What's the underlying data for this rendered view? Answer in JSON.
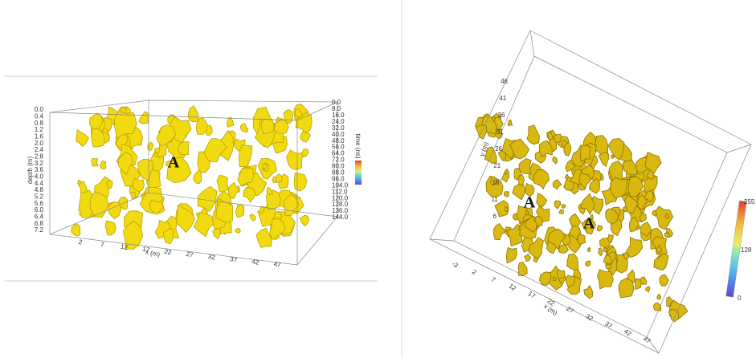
{
  "left_panel": {
    "depth_label": "depth (m)",
    "depth_ticks": [
      "0.0",
      "0.4",
      "0.8",
      "1.2",
      "1.6",
      "2.0",
      "2.4",
      "2.8",
      "3.2",
      "3.6",
      "4.0",
      "4.4",
      "4.8",
      "5.2",
      "5.6",
      "6.0",
      "6.4",
      "6.8",
      "7.2"
    ],
    "time_label": "time (ns)",
    "time_ticks": [
      "0.0",
      "8.0",
      "16.0",
      "24.0",
      "32.0",
      "40.0",
      "48.0",
      "56.0",
      "64.0",
      "72.0",
      "80.0",
      "88.0",
      "96.0",
      "104.0",
      "112.0",
      "120.0",
      "128.0",
      "136.0",
      "144.0"
    ],
    "x_label": "x (m)",
    "x_ticks": [
      "2",
      "7",
      "12",
      "17",
      "22",
      "27",
      "32",
      "37",
      "42",
      "47"
    ],
    "annotations": [
      "A"
    ]
  },
  "right_panel": {
    "y_label": "y (m)",
    "y_ticks": [
      "46",
      "41",
      "36",
      "31",
      "26",
      "21",
      "16",
      "11",
      "6"
    ],
    "x_label": "x (m)",
    "x_ticks": [
      "-3",
      "2",
      "7",
      "12",
      "17",
      "22",
      "27",
      "32",
      "37",
      "42",
      "47"
    ],
    "colorbar_ticks": [
      "255",
      "128",
      "0"
    ],
    "annotations": [
      "A",
      "A"
    ]
  }
}
